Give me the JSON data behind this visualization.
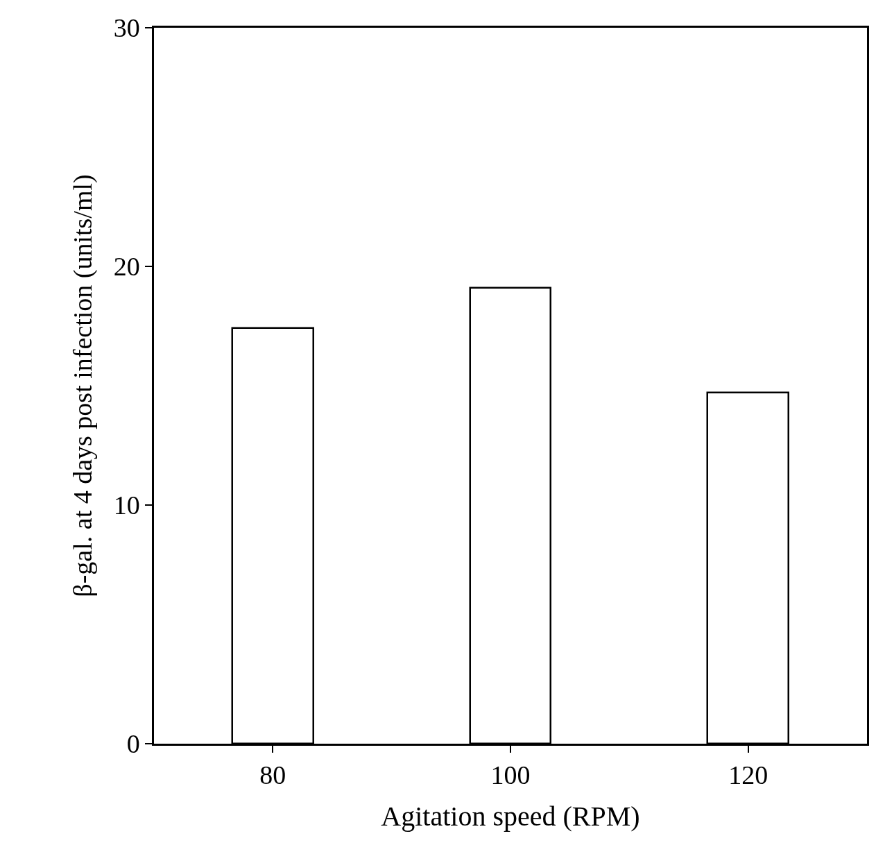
{
  "chart_data": {
    "type": "bar",
    "x": [
      80,
      100,
      120
    ],
    "values": [
      17.4,
      19.1,
      14.7
    ],
    "color": "#ffffff",
    "xlabel": "Agitation speed (RPM)",
    "ylabel": "β-gal. at 4 days post infection (units/ml)",
    "xlim": [
      70,
      130
    ],
    "xticks": [
      80,
      100,
      120
    ],
    "ylim": [
      0,
      30
    ],
    "yticks": [
      0,
      10,
      20,
      30
    ],
    "grid": false
  }
}
